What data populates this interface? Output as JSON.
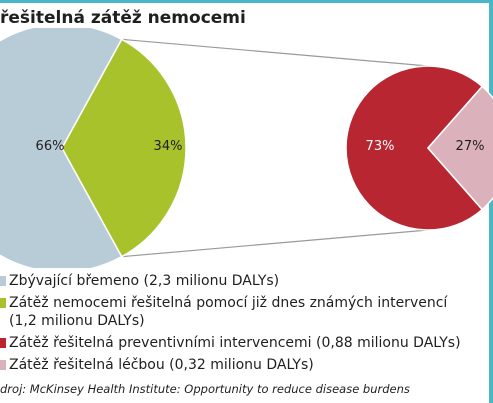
{
  "title": "řešitelná zátěž nemocemi",
  "chart_data": [
    {
      "type": "pie",
      "labels": [
        "Zbývající břemeno",
        "Zátěž nemocemi řešitelná pomocí již dnes známých intervencí"
      ],
      "values": [
        66,
        34
      ],
      "value_labels": [
        "66%",
        "34%"
      ],
      "colors": [
        "#b7ccd6",
        "#a8c22c"
      ]
    },
    {
      "type": "pie",
      "labels": [
        "Zátěž řešitelná preventivními intervencemi",
        "Zátěž řešitelná léčbou"
      ],
      "values": [
        73,
        27
      ],
      "value_labels": [
        "73%",
        "27%"
      ],
      "colors": [
        "#b82631",
        "#dbb2bb"
      ]
    }
  ],
  "legend": [
    {
      "text": "Zbývající břemeno (2,3 milionu DALYs)",
      "color": "#b7ccd6"
    },
    {
      "text": "Zátěž nemocemi řešitelná pomocí již dnes známých intervencí",
      "text2": "(1,2 milionu DALYs)",
      "color": "#a8c22c"
    },
    {
      "text": "Zátěž řešitelná preventivními intervencemi (0,88 milionu DALYs)",
      "color": "#b82631"
    },
    {
      "text": "Zátěž řešitelná léčbou (0,32 milionu DALYs)",
      "color": "#dbb2bb"
    }
  ],
  "source": "droj: McKinsey Health Institute: Opportunity to reduce disease burdens"
}
